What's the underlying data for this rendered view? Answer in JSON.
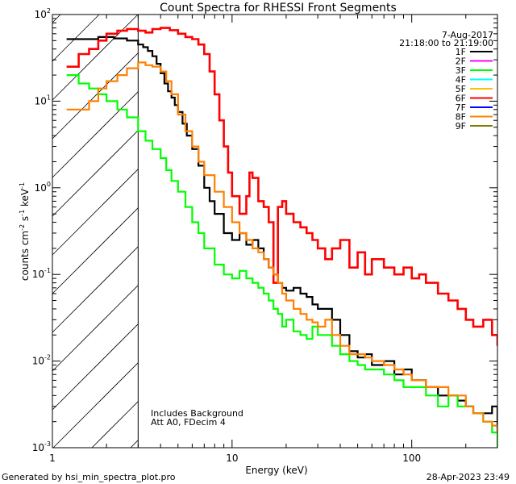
{
  "chart_data": {
    "type": "line",
    "title": "Count Spectra for RHESSI Front Segments",
    "xlabel": "Energy (keV)",
    "ylabel": "counts cm-2 s-1 keV-1",
    "xscale": "log",
    "yscale": "log",
    "xlim": [
      1,
      300
    ],
    "ylim": [
      0.001,
      100
    ],
    "x_tick_labels": [
      "1",
      "10",
      "100"
    ],
    "y_tick_labels": [
      {
        "base": "10",
        "exp": "-3"
      },
      {
        "base": "10",
        "exp": "-2"
      },
      {
        "base": "10",
        "exp": "-1"
      },
      {
        "base": "10",
        "exp": "0"
      },
      {
        "base": "10",
        "exp": "1"
      },
      {
        "base": "10",
        "exp": "2"
      }
    ],
    "shaded_region_max_energy": 3,
    "date": "7-Aug-2017",
    "time_range": "21:18:00 to 21:19:00",
    "legend": [
      {
        "label": "1F",
        "color": "#000000"
      },
      {
        "label": "2F",
        "color": "#ff00ff"
      },
      {
        "label": "3F",
        "color": "#00ff00"
      },
      {
        "label": "4F",
        "color": "#00ffff"
      },
      {
        "label": "5F",
        "color": "#ffc000"
      },
      {
        "label": "6F",
        "color": "#ff0000"
      },
      {
        "label": "7F",
        "color": "#0000ff"
      },
      {
        "label": "8F",
        "color": "#ff8000"
      },
      {
        "label": "9F",
        "color": "#808000"
      }
    ],
    "annotations": [
      "Includes Background",
      "Att A0, FDecim 4"
    ],
    "series": [
      {
        "name": "1F",
        "color": "#000000",
        "x": [
          1.2,
          1.5,
          1.8,
          2.2,
          2.6,
          3.0,
          3.2,
          3.4,
          3.6,
          3.8,
          4.0,
          4.2,
          4.4,
          4.6,
          4.8,
          5.0,
          5.3,
          5.6,
          6.0,
          6.5,
          7.0,
          7.5,
          8.0,
          9.0,
          10,
          11,
          12,
          13,
          14,
          15,
          16,
          17,
          18,
          19,
          20,
          22,
          24,
          26,
          28,
          30,
          33,
          36,
          40,
          45,
          50,
          55,
          60,
          70,
          80,
          90,
          100,
          120,
          140,
          160,
          180,
          200,
          220,
          250,
          280,
          300
        ],
        "y": [
          52,
          52,
          55,
          53,
          50,
          45,
          42,
          38,
          33,
          27,
          21,
          16,
          13,
          11,
          9,
          7.5,
          5.5,
          4.0,
          2.8,
          1.8,
          1.0,
          0.7,
          0.5,
          0.3,
          0.25,
          0.3,
          0.22,
          0.25,
          0.2,
          0.15,
          0.12,
          0.1,
          0.08,
          0.07,
          0.065,
          0.07,
          0.06,
          0.055,
          0.045,
          0.04,
          0.04,
          0.03,
          0.02,
          0.013,
          0.011,
          0.012,
          0.009,
          0.01,
          0.007,
          0.008,
          0.006,
          0.005,
          0.004,
          0.004,
          0.0035,
          0.003,
          0.0025,
          0.0025,
          0.003,
          0.0015
        ]
      },
      {
        "name": "3F",
        "color": "#00ff00",
        "x": [
          1.2,
          1.4,
          1.6,
          1.8,
          2.0,
          2.3,
          2.6,
          3.0,
          3.3,
          3.6,
          4.0,
          4.3,
          4.6,
          5.0,
          5.5,
          6.0,
          6.5,
          7.0,
          8.0,
          9.0,
          10,
          11,
          12,
          13,
          14,
          15,
          16,
          17,
          18,
          19,
          20,
          22,
          24,
          26,
          28,
          30,
          33,
          36,
          40,
          45,
          50,
          55,
          60,
          70,
          80,
          90,
          100,
          120,
          140,
          160,
          180,
          200,
          220,
          250,
          280,
          300
        ],
        "y": [
          20,
          16,
          14,
          12,
          10,
          8,
          6.5,
          4.5,
          3.5,
          2.8,
          2.2,
          1.6,
          1.2,
          0.9,
          0.6,
          0.4,
          0.3,
          0.2,
          0.13,
          0.1,
          0.09,
          0.11,
          0.09,
          0.08,
          0.07,
          0.06,
          0.05,
          0.04,
          0.035,
          0.025,
          0.03,
          0.022,
          0.02,
          0.018,
          0.025,
          0.02,
          0.02,
          0.015,
          0.012,
          0.01,
          0.009,
          0.008,
          0.008,
          0.007,
          0.006,
          0.005,
          0.005,
          0.004,
          0.003,
          0.004,
          0.003,
          0.003,
          0.0025,
          0.002,
          0.0015,
          0.001
        ]
      },
      {
        "name": "6F",
        "color": "#ff0000",
        "x": [
          1.2,
          1.4,
          1.6,
          1.8,
          2.0,
          2.3,
          2.6,
          3.0,
          3.3,
          3.6,
          4.0,
          4.5,
          5.0,
          5.5,
          6.0,
          6.5,
          7.0,
          7.5,
          8.0,
          8.5,
          9.0,
          9.5,
          10,
          11,
          12,
          12.5,
          13,
          14,
          15,
          16,
          17,
          18,
          19,
          20,
          22,
          24,
          26,
          28,
          30,
          33,
          36,
          40,
          45,
          50,
          55,
          60,
          70,
          80,
          90,
          100,
          110,
          120,
          140,
          160,
          180,
          200,
          220,
          250,
          280,
          300
        ],
        "y": [
          25,
          35,
          40,
          50,
          60,
          65,
          68,
          65,
          62,
          68,
          70,
          66,
          60,
          55,
          52,
          45,
          35,
          22,
          12,
          6,
          3,
          1.5,
          0.8,
          0.5,
          0.8,
          1.5,
          1.3,
          0.7,
          0.6,
          0.4,
          0.08,
          0.6,
          0.7,
          0.5,
          0.4,
          0.35,
          0.3,
          0.25,
          0.2,
          0.15,
          0.2,
          0.25,
          0.12,
          0.18,
          0.1,
          0.15,
          0.12,
          0.1,
          0.12,
          0.09,
          0.1,
          0.08,
          0.06,
          0.05,
          0.04,
          0.03,
          0.025,
          0.03,
          0.02,
          0.015
        ]
      },
      {
        "name": "8F",
        "color": "#ff8000",
        "x": [
          1.2,
          1.4,
          1.6,
          1.8,
          2.0,
          2.3,
          2.6,
          3.0,
          3.3,
          3.6,
          4.0,
          4.3,
          4.6,
          5.0,
          5.5,
          6.0,
          6.5,
          7.0,
          8.0,
          9.0,
          10,
          11,
          12,
          13,
          14,
          15,
          16,
          17,
          18,
          19,
          20,
          22,
          24,
          26,
          28,
          30,
          33,
          36,
          40,
          45,
          50,
          55,
          60,
          70,
          80,
          90,
          100,
          120,
          140,
          160,
          180,
          200,
          220,
          250,
          280,
          300
        ],
        "y": [
          8,
          8,
          10,
          14,
          17,
          20,
          24,
          28,
          26,
          25,
          22,
          17,
          12,
          7,
          4.5,
          3,
          2,
          1.4,
          0.9,
          0.6,
          0.4,
          0.3,
          0.25,
          0.2,
          0.18,
          0.15,
          0.12,
          0.1,
          0.08,
          0.06,
          0.05,
          0.04,
          0.035,
          0.03,
          0.028,
          0.025,
          0.03,
          0.02,
          0.015,
          0.012,
          0.012,
          0.011,
          0.01,
          0.009,
          0.008,
          0.007,
          0.006,
          0.005,
          0.005,
          0.004,
          0.004,
          0.003,
          0.0025,
          0.002,
          0.0018,
          0.0015
        ]
      }
    ]
  },
  "footer": {
    "left": "Generated by hsi_min_spectra_plot.pro",
    "right": "28-Apr-2023 23:49"
  }
}
